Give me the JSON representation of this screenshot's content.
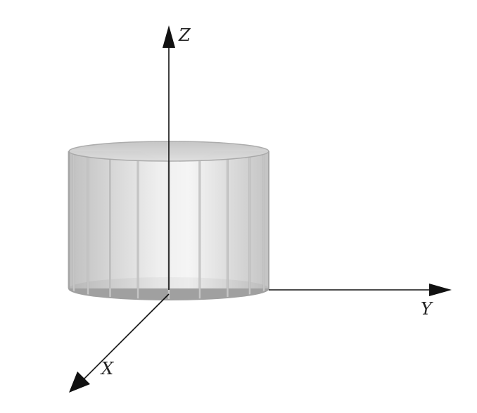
{
  "figure": {
    "axes": {
      "z": "Z",
      "y": "Y",
      "x": "X"
    },
    "colors": {
      "axis": "#111111",
      "cylinder_face": "#c8c8c8",
      "cylinder_highlight": "#f2f2f2",
      "cylinder_edge": "#9a9a9a",
      "cylinder_base": "#8f8f8f"
    },
    "cylinder_panels": 20
  }
}
